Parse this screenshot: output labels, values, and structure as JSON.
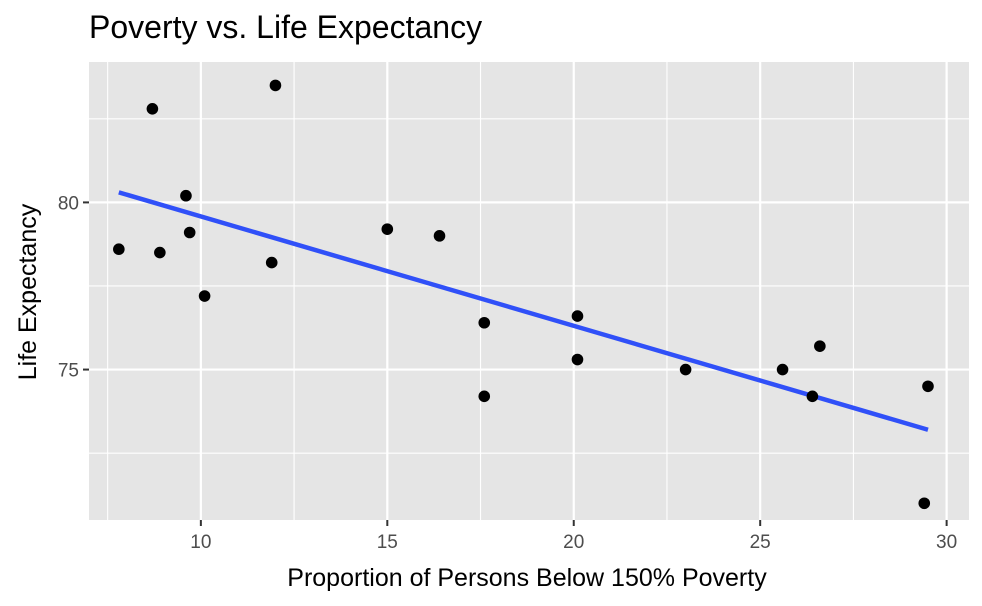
{
  "chart_data": {
    "type": "scatter",
    "title": "Poverty vs. Life Expectancy",
    "xlabel": "Proportion of Persons Below 150% Poverty",
    "ylabel": "Life Expectancy",
    "xlim": [
      7.0,
      30.6
    ],
    "ylim": [
      70.5,
      84.2
    ],
    "x_ticks": [
      10,
      15,
      20,
      25,
      30
    ],
    "y_ticks": [
      75,
      80
    ],
    "grid": true,
    "legend": "none",
    "colors": {
      "panel": "#e5e5e5",
      "grid": "#ffffff",
      "points": "#000000",
      "trend": "#3050f8",
      "tick_text": "#4d4d4d"
    },
    "points": [
      {
        "x": 7.8,
        "y": 78.6
      },
      {
        "x": 8.7,
        "y": 82.8
      },
      {
        "x": 8.9,
        "y": 78.5
      },
      {
        "x": 9.6,
        "y": 80.2
      },
      {
        "x": 9.7,
        "y": 79.1
      },
      {
        "x": 10.1,
        "y": 77.2
      },
      {
        "x": 11.9,
        "y": 78.2
      },
      {
        "x": 12.0,
        "y": 83.5
      },
      {
        "x": 15.0,
        "y": 79.2
      },
      {
        "x": 16.4,
        "y": 79.0
      },
      {
        "x": 17.6,
        "y": 76.4
      },
      {
        "x": 17.6,
        "y": 74.2
      },
      {
        "x": 20.1,
        "y": 76.6
      },
      {
        "x": 20.1,
        "y": 75.3
      },
      {
        "x": 23.0,
        "y": 75.0
      },
      {
        "x": 25.6,
        "y": 75.0
      },
      {
        "x": 26.4,
        "y": 74.2
      },
      {
        "x": 26.6,
        "y": 75.7
      },
      {
        "x": 29.4,
        "y": 71.0
      },
      {
        "x": 29.5,
        "y": 74.5
      }
    ],
    "trend_line": {
      "method": "linear",
      "start": {
        "x": 7.8,
        "y": 80.3
      },
      "end": {
        "x": 29.5,
        "y": 73.2
      }
    }
  }
}
